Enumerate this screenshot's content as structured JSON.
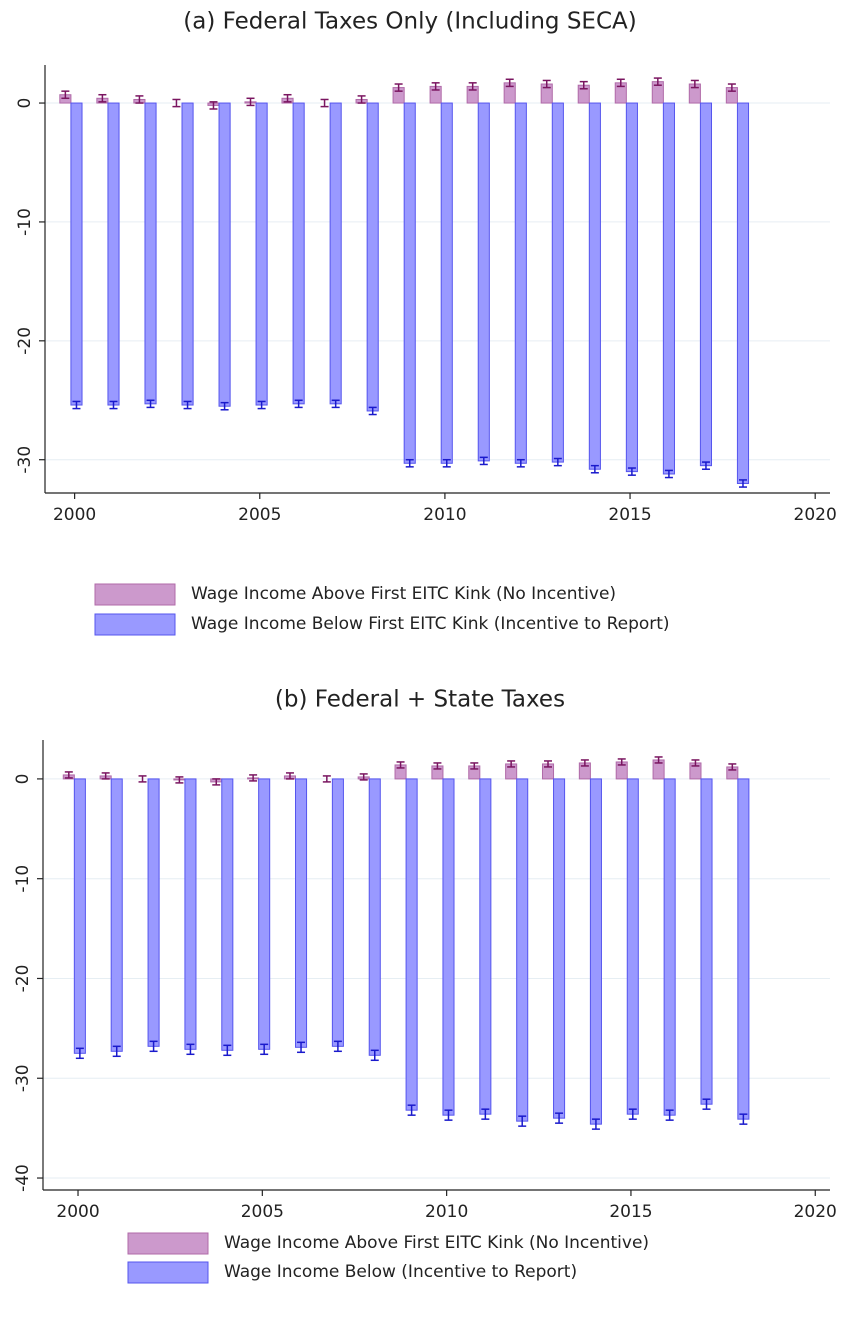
{
  "chart_data": [
    {
      "type": "bar",
      "title": "(a) Federal Taxes Only (Including SECA)",
      "x": [
        2000,
        2001,
        2002,
        2003,
        2004,
        2005,
        2006,
        2007,
        2008,
        2009,
        2010,
        2011,
        2012,
        2013,
        2014,
        2015,
        2016,
        2017,
        2018
      ],
      "series": [
        {
          "name": "Wage Income Above First EITC Kink (No Incentive)",
          "color": "#cc99cc",
          "edge": "#b06aa8",
          "err_color": "#7a1560",
          "values": [
            0.7,
            0.4,
            0.3,
            0.0,
            -0.2,
            0.1,
            0.4,
            0.0,
            0.3,
            1.3,
            1.4,
            1.4,
            1.7,
            1.6,
            1.5,
            1.7,
            1.8,
            1.6,
            1.3
          ],
          "errors": [
            0.3,
            0.3,
            0.3,
            0.3,
            0.3,
            0.3,
            0.3,
            0.3,
            0.3,
            0.3,
            0.3,
            0.3,
            0.3,
            0.3,
            0.3,
            0.3,
            0.3,
            0.3,
            0.3
          ]
        },
        {
          "name": "Wage Income Below First EITC Kink  (Incentive to Report)",
          "color": "#9999ff",
          "edge": "#5555ee",
          "err_color": "#1a1acc",
          "values": [
            -25.4,
            -25.4,
            -25.3,
            -25.4,
            -25.5,
            -25.4,
            -25.3,
            -25.3,
            -25.9,
            -30.3,
            -30.3,
            -30.1,
            -30.3,
            -30.2,
            -30.8,
            -31.0,
            -31.2,
            -30.5,
            -32.0
          ],
          "errors": [
            0.3,
            0.3,
            0.3,
            0.3,
            0.3,
            0.3,
            0.3,
            0.3,
            0.3,
            0.3,
            0.3,
            0.3,
            0.3,
            0.3,
            0.3,
            0.3,
            0.3,
            0.3,
            0.3
          ]
        }
      ],
      "xlim": [
        1999.2,
        2020.4
      ],
      "ylim": [
        -32.8,
        3.2
      ],
      "xticks": [
        2000,
        2005,
        2010,
        2015,
        2020
      ],
      "yticks": [
        0,
        -10,
        -20,
        -30
      ],
      "grid": true
    },
    {
      "type": "bar",
      "title": "(b) Federal + State Taxes",
      "x": [
        2000,
        2001,
        2002,
        2003,
        2004,
        2005,
        2006,
        2007,
        2008,
        2009,
        2010,
        2011,
        2012,
        2013,
        2014,
        2015,
        2016,
        2017,
        2018
      ],
      "series": [
        {
          "name": "Wage Income Above First EITC Kink (No Incentive)",
          "color": "#cc99cc",
          "edge": "#b06aa8",
          "err_color": "#7a1560",
          "values": [
            0.4,
            0.3,
            0.0,
            -0.1,
            -0.3,
            0.1,
            0.3,
            0.0,
            0.2,
            1.4,
            1.3,
            1.3,
            1.5,
            1.5,
            1.6,
            1.7,
            1.9,
            1.6,
            1.2
          ],
          "errors": [
            0.3,
            0.3,
            0.3,
            0.3,
            0.3,
            0.3,
            0.3,
            0.3,
            0.3,
            0.3,
            0.3,
            0.3,
            0.3,
            0.3,
            0.3,
            0.3,
            0.3,
            0.3,
            0.3
          ]
        },
        {
          "name": "Wage Income Below (Incentive to Report)",
          "color": "#9999ff",
          "edge": "#5555ee",
          "err_color": "#1a1acc",
          "values": [
            -27.5,
            -27.3,
            -26.8,
            -27.1,
            -27.2,
            -27.1,
            -26.9,
            -26.8,
            -27.7,
            -33.2,
            -33.7,
            -33.6,
            -34.3,
            -34.0,
            -34.6,
            -33.6,
            -33.7,
            -32.6,
            -34.1
          ],
          "errors": [
            0.5,
            0.5,
            0.5,
            0.5,
            0.5,
            0.5,
            0.5,
            0.5,
            0.5,
            0.5,
            0.5,
            0.5,
            0.5,
            0.5,
            0.5,
            0.5,
            0.5,
            0.5,
            0.5
          ]
        }
      ],
      "xlim": [
        1999.05,
        2020.4
      ],
      "ylim": [
        -41.2,
        3.9
      ],
      "xticks": [
        2000,
        2005,
        2010,
        2015,
        2020
      ],
      "yticks": [
        0,
        -10,
        -20,
        -30,
        -40
      ],
      "grid": true
    }
  ]
}
